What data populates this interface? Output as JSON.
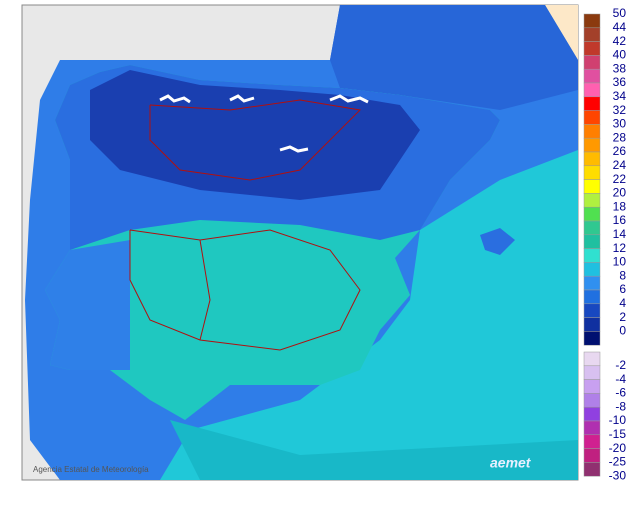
{
  "footer": {
    "agency": "Agencia Estatal de Meteorología",
    "logo": "aemet"
  },
  "legend": {
    "positive": [
      {
        "label": 50,
        "color": "#8b3a0f"
      },
      {
        "label": 44,
        "color": "#a3402a"
      },
      {
        "label": 42,
        "color": "#c0392b"
      },
      {
        "label": 40,
        "color": "#d04070"
      },
      {
        "label": 38,
        "color": "#e050a0"
      },
      {
        "label": 36,
        "color": "#ff60b0"
      },
      {
        "label": 34,
        "color": "#ff0000"
      },
      {
        "label": 32,
        "color": "#ff4500"
      },
      {
        "label": 30,
        "color": "#ff7f00"
      },
      {
        "label": 28,
        "color": "#ff9900"
      },
      {
        "label": 26,
        "color": "#ffbb00"
      },
      {
        "label": 24,
        "color": "#ffdd00"
      },
      {
        "label": 22,
        "color": "#ffff00"
      },
      {
        "label": 20,
        "color": "#b0f040"
      },
      {
        "label": 18,
        "color": "#50e050"
      },
      {
        "label": 16,
        "color": "#30c890"
      },
      {
        "label": 14,
        "color": "#20c0a0"
      },
      {
        "label": 12,
        "color": "#30e0d0"
      },
      {
        "label": 10,
        "color": "#20c0e0"
      },
      {
        "label": 8,
        "color": "#3090f0"
      },
      {
        "label": 6,
        "color": "#2070e0"
      },
      {
        "label": 4,
        "color": "#1848c0"
      },
      {
        "label": 2,
        "color": "#1030a0"
      },
      {
        "label": 0,
        "color": "#001070"
      }
    ],
    "negative": [
      {
        "label": -2,
        "color": "#e8d8f0"
      },
      {
        "label": -4,
        "color": "#d8c0f0"
      },
      {
        "label": -6,
        "color": "#c8a0f0"
      },
      {
        "label": -8,
        "color": "#b080e8"
      },
      {
        "label": -10,
        "color": "#9040e0"
      },
      {
        "label": -15,
        "color": "#b030b0"
      },
      {
        "label": -20,
        "color": "#d02090"
      },
      {
        "label": -25,
        "color": "#c02080"
      },
      {
        "label": -30,
        "color": "#903070"
      }
    ]
  }
}
